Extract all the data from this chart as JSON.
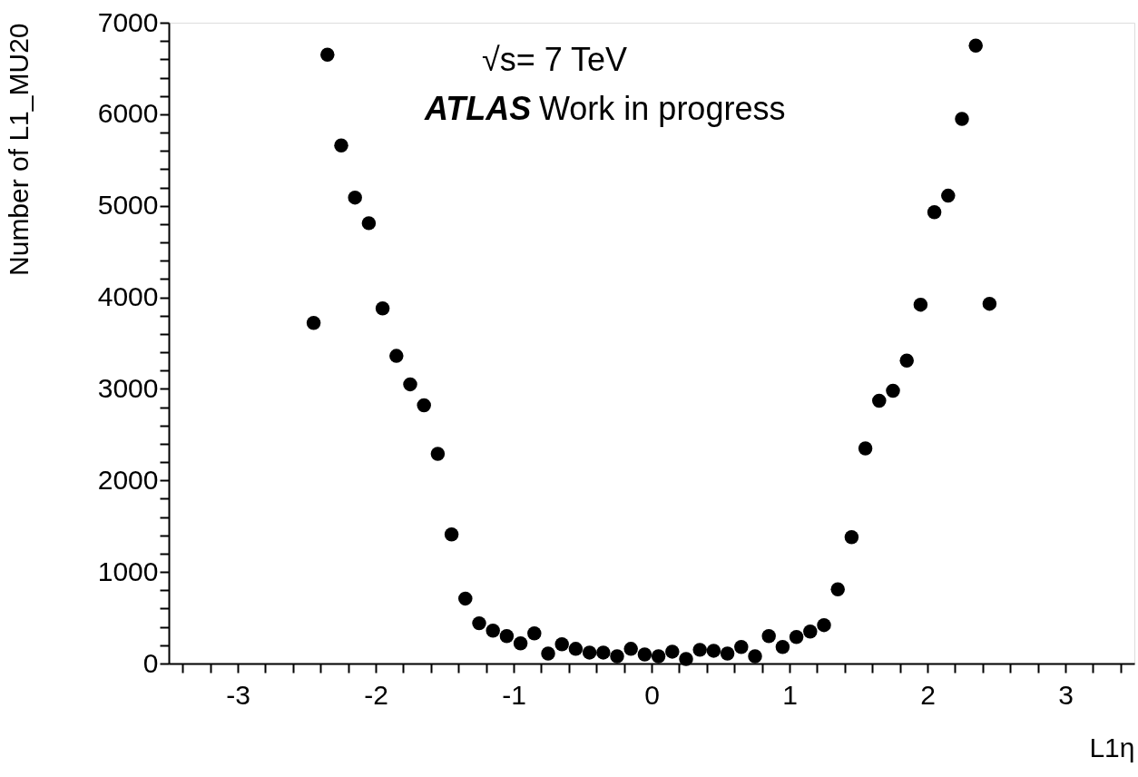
{
  "chart_data": {
    "type": "scatter",
    "xlabel": "L1η",
    "ylabel": "Number of L1_MU20",
    "annotations": [
      "√s= 7 TeV",
      "ATLAS",
      "Work in progress"
    ],
    "x": [
      -2.45,
      -2.35,
      -2.25,
      -2.15,
      -2.05,
      -1.95,
      -1.85,
      -1.75,
      -1.65,
      -1.55,
      -1.45,
      -1.35,
      -1.25,
      -1.15,
      -1.05,
      -0.95,
      -0.85,
      -0.75,
      -0.65,
      -0.55,
      -0.45,
      -0.35,
      -0.25,
      -0.15,
      -0.05,
      0.05,
      0.15,
      0.25,
      0.35,
      0.45,
      0.55,
      0.65,
      0.75,
      0.85,
      0.95,
      1.05,
      1.15,
      1.25,
      1.35,
      1.45,
      1.55,
      1.65,
      1.75,
      1.85,
      1.95,
      2.05,
      2.15,
      2.25,
      2.35,
      2.45
    ],
    "series": [
      {
        "color": "#000000",
        "values": [
          3720,
          6650,
          5660,
          5090,
          4810,
          3880,
          3360,
          3050,
          2820,
          2290,
          1410,
          710,
          440,
          360,
          300,
          220,
          330,
          110,
          210,
          160,
          120,
          120,
          80,
          160,
          100,
          80,
          130,
          50,
          150,
          140,
          110,
          180,
          80,
          300,
          180,
          290,
          350,
          420,
          810,
          1380,
          2350,
          2870,
          2980,
          3310,
          3920,
          4930,
          5110,
          5950,
          6750,
          3930
        ]
      }
    ],
    "marker": "circle",
    "grid": false,
    "xlim": [
      -3.5,
      3.5
    ],
    "ylim": [
      0,
      7000
    ],
    "xticks": [
      {
        "value": -3.4,
        "label": null
      },
      {
        "value": -3.2,
        "label": null
      },
      -3,
      {
        "value": -2.8,
        "label": null
      },
      {
        "value": -2.6,
        "label": null
      },
      {
        "value": -2.4,
        "label": null
      },
      {
        "value": -2.2,
        "label": null
      },
      -2,
      {
        "value": -1.8,
        "label": null
      },
      {
        "value": -1.6,
        "label": null
      },
      {
        "value": -1.4,
        "label": null
      },
      {
        "value": -1.2,
        "label": null
      },
      -1,
      {
        "value": -0.8,
        "label": null
      },
      {
        "value": -0.6,
        "label": null
      },
      {
        "value": -0.4,
        "label": null
      },
      {
        "value": -0.2,
        "label": null
      },
      0,
      {
        "value": 0.2,
        "label": null
      },
      {
        "value": 0.4,
        "label": null
      },
      {
        "value": 0.6,
        "label": null
      },
      {
        "value": 0.8,
        "label": null
      },
      1,
      {
        "value": 1.2,
        "label": null
      },
      {
        "value": 1.4,
        "label": null
      },
      {
        "value": 1.6,
        "label": null
      },
      {
        "value": 1.8,
        "label": null
      },
      2,
      {
        "value": 2.2,
        "label": null
      },
      {
        "value": 2.4,
        "label": null
      },
      {
        "value": 2.6,
        "label": null
      },
      {
        "value": 2.8,
        "label": null
      },
      3,
      {
        "value": 3.2,
        "label": null
      },
      {
        "value": 3.4,
        "label": null
      }
    ],
    "yticks": [
      0,
      {
        "value": 200,
        "label": null
      },
      {
        "value": 400,
        "label": null
      },
      {
        "value": 600,
        "label": null
      },
      {
        "value": 800,
        "label": null
      },
      1000,
      {
        "value": 1200,
        "label": null
      },
      {
        "value": 1400,
        "label": null
      },
      {
        "value": 1600,
        "label": null
      },
      {
        "value": 1800,
        "label": null
      },
      2000,
      {
        "value": 2200,
        "label": null
      },
      {
        "value": 2400,
        "label": null
      },
      {
        "value": 2600,
        "label": null
      },
      {
        "value": 2800,
        "label": null
      },
      3000,
      {
        "value": 3200,
        "label": null
      },
      {
        "value": 3400,
        "label": null
      },
      {
        "value": 3600,
        "label": null
      },
      {
        "value": 3800,
        "label": null
      },
      4000,
      {
        "value": 4200,
        "label": null
      },
      {
        "value": 4400,
        "label": null
      },
      {
        "value": 4600,
        "label": null
      },
      {
        "value": 4800,
        "label": null
      },
      5000,
      {
        "value": 5200,
        "label": null
      },
      {
        "value": 5400,
        "label": null
      },
      {
        "value": 5600,
        "label": null
      },
      {
        "value": 5800,
        "label": null
      },
      6000,
      {
        "value": 6200,
        "label": null
      },
      {
        "value": 6400,
        "label": null
      },
      {
        "value": 6600,
        "label": null
      },
      {
        "value": 6800,
        "label": null
      },
      7000
    ]
  }
}
